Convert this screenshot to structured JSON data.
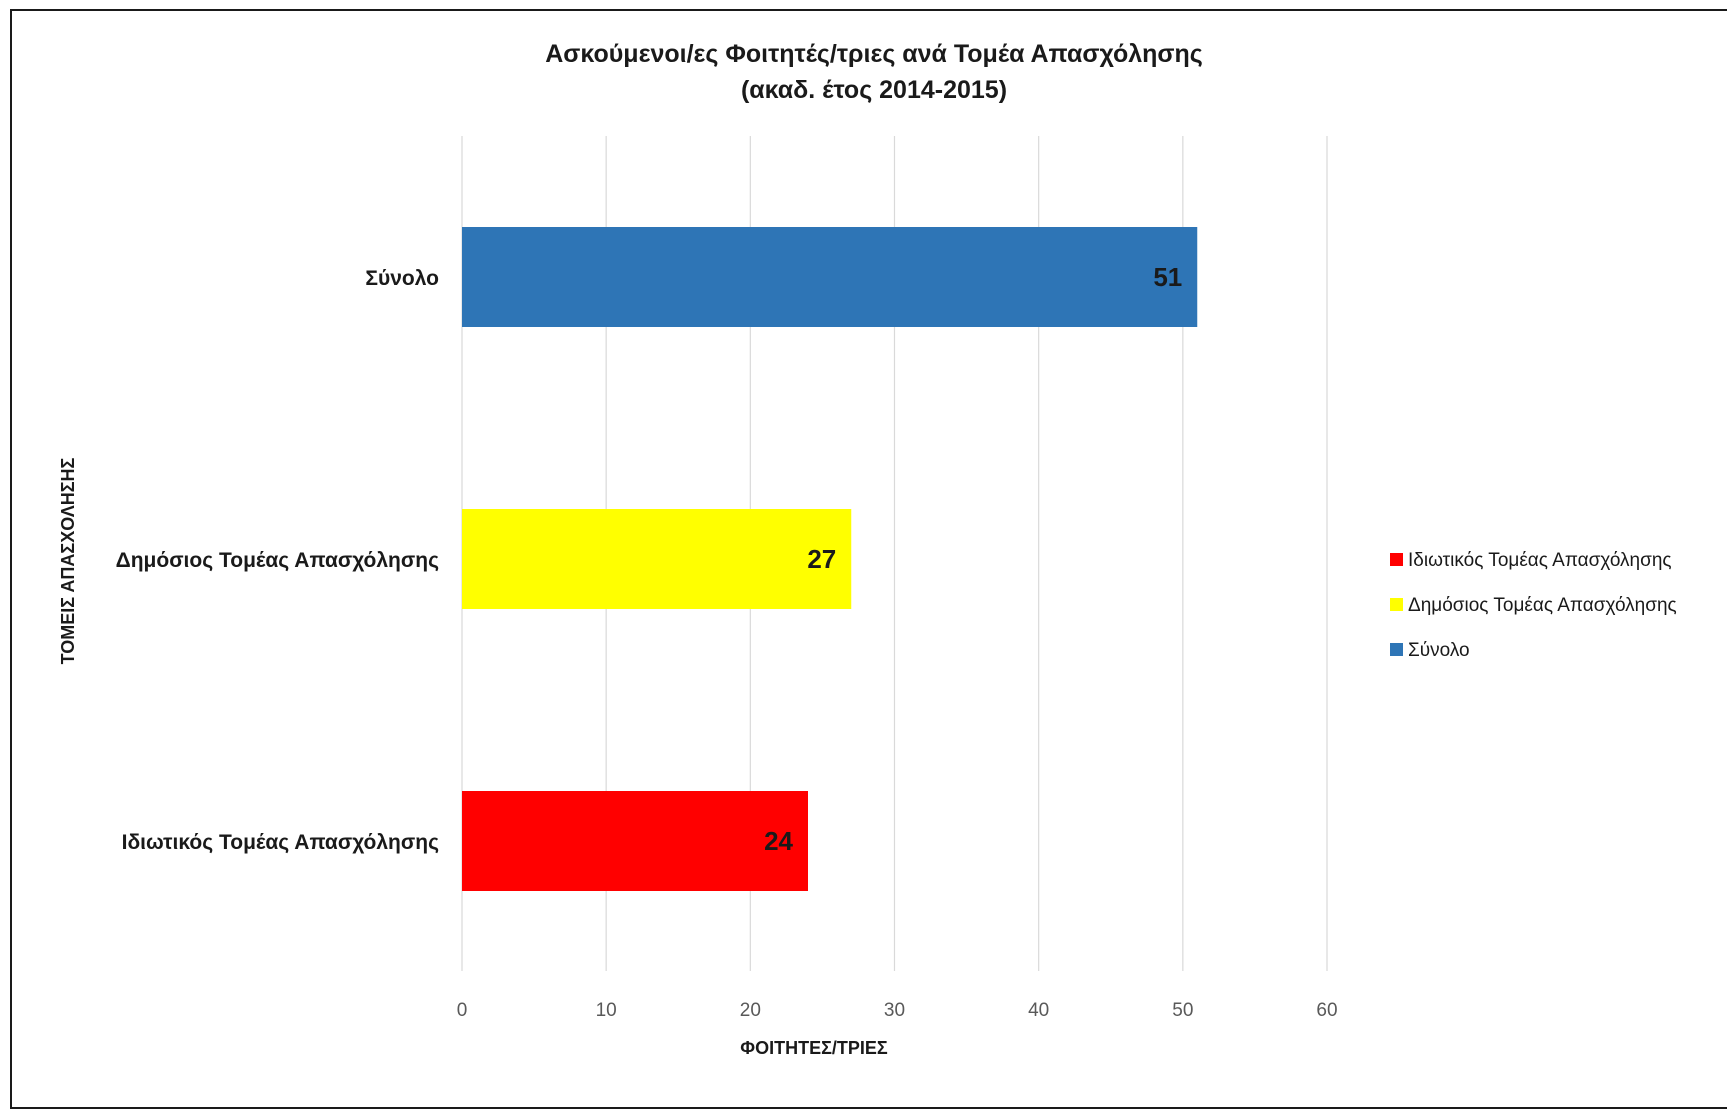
{
  "chart_data": {
    "type": "bar",
    "orientation": "horizontal",
    "title": "Ασκούμενοι/ες Φοιτητές/τριες ανά Τομέα Απασχόλησης",
    "subtitle": "(ακαδ. έτος 2014-2015)",
    "categories": [
      "Σύνολο",
      "Δημόσιος Τομέας Απασχόλησης",
      "Ιδιωτικός Τομέας Απασχόλησης"
    ],
    "values": [
      51,
      27,
      24
    ],
    "colors": [
      "#2e75b6",
      "#ffff00",
      "#ff0000"
    ],
    "xlabel": "ΦΟΙΤΗΤΕΣ/ΤΡΙΕΣ",
    "ylabel": "ΤΟΜΕΙΣ ΑΠΑΣΧΟΛΗΣΗΣ",
    "xlim": [
      0,
      60
    ],
    "xticks": [
      "0",
      "10",
      "20",
      "30",
      "40",
      "50",
      "60"
    ],
    "grid": true,
    "data_labels": [
      "51",
      "27",
      "24"
    ],
    "legend": {
      "position": "right",
      "entries": [
        {
          "label": "Ιδιωτικός Τομέας Απασχόλησης",
          "color": "#ff0000"
        },
        {
          "label": "Δημόσιος Τομέας Απασχόλησης",
          "color": "#ffff00"
        },
        {
          "label": "Σύνολο",
          "color": "#2e75b6"
        }
      ]
    }
  }
}
